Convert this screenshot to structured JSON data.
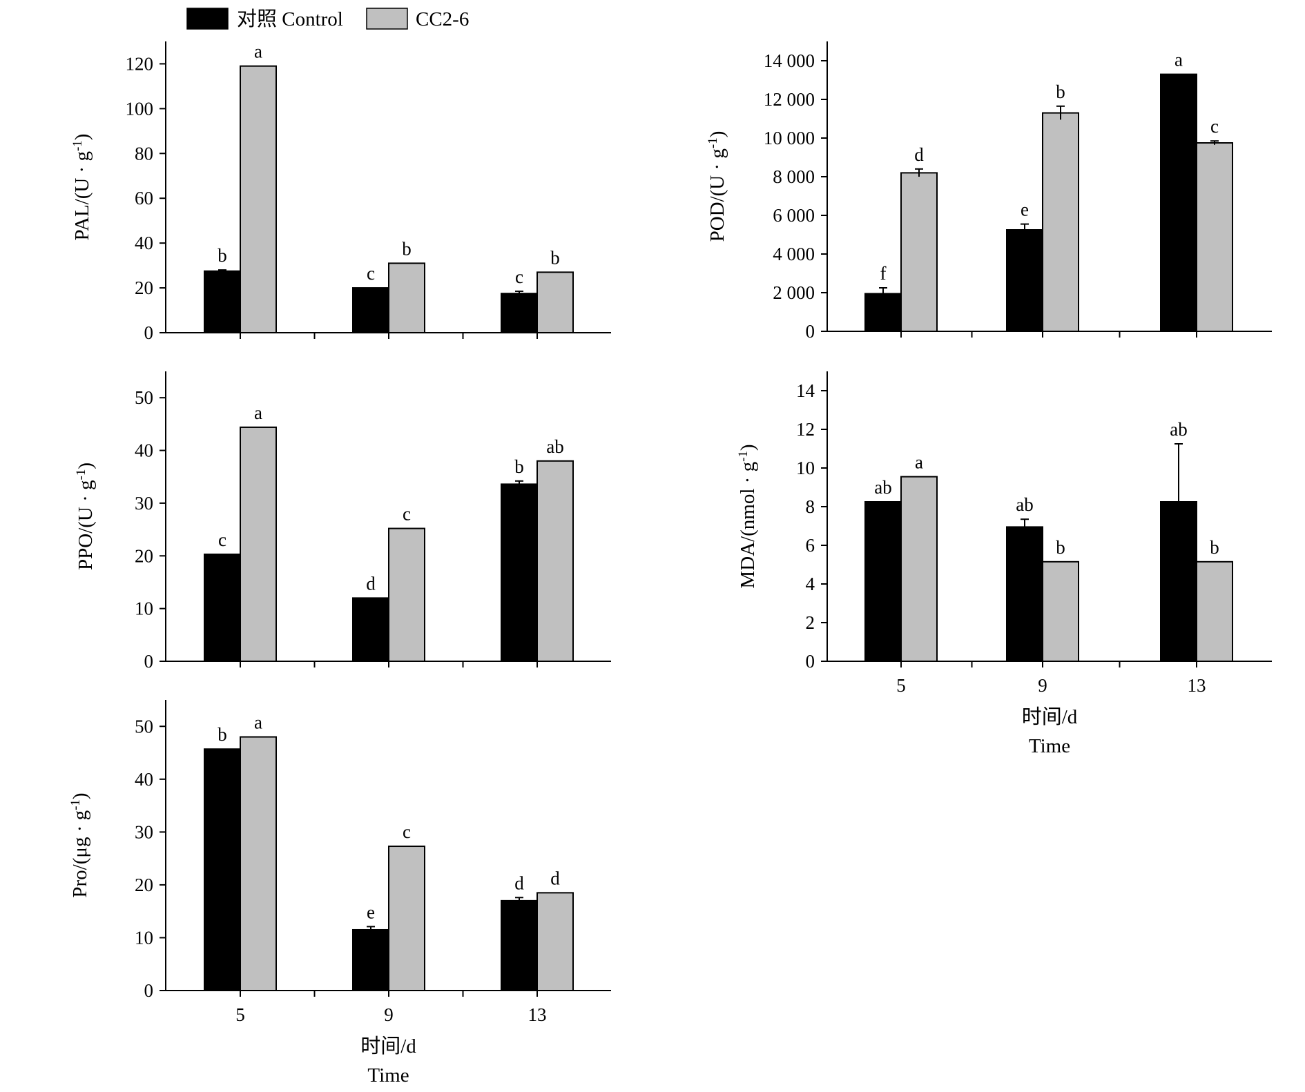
{
  "legend": {
    "items": [
      {
        "label": "对照 Control",
        "color": "#000000"
      },
      {
        "label": "CC2-6",
        "color": "#c0c0c0"
      }
    ]
  },
  "colors": {
    "control": "#000000",
    "treatment": "#c0c0c0",
    "axis": "#000000"
  },
  "chart_data": [
    {
      "id": "pal",
      "type": "bar",
      "ylabel": "PAL/(U · g-1)",
      "ylim": [
        0,
        130
      ],
      "yticks": [
        0,
        20,
        40,
        60,
        80,
        100,
        120
      ],
      "ytick_labels": [
        "0",
        "20",
        "40",
        "60",
        "80",
        "100",
        "120"
      ],
      "categories": [
        "5",
        "9",
        "13"
      ],
      "show_xticklabels": false,
      "series": [
        {
          "name": "对照 Control",
          "values": [
            27.5,
            20,
            17.5
          ],
          "errors": [
            0.5,
            0,
            1
          ],
          "letters": [
            "b",
            "c",
            "c"
          ]
        },
        {
          "name": "CC2-6",
          "values": [
            119,
            31,
            27
          ],
          "errors": [
            0,
            0,
            0
          ],
          "letters": [
            "a",
            "b",
            "b"
          ]
        }
      ]
    },
    {
      "id": "pod",
      "type": "bar",
      "ylabel": "POD/(U · g-1)",
      "ylim": [
        0,
        15000
      ],
      "yticks": [
        0,
        2000,
        4000,
        6000,
        8000,
        10000,
        12000,
        14000
      ],
      "ytick_labels": [
        "0",
        "2 000",
        "4 000",
        "6 000",
        "8 000",
        "10 000",
        "12 000",
        "14 000"
      ],
      "categories": [
        "5",
        "9",
        "13"
      ],
      "show_xticklabels": false,
      "series": [
        {
          "name": "对照 Control",
          "values": [
            1950,
            5250,
            13300
          ],
          "errors": [
            300,
            300,
            0
          ],
          "letters": [
            "f",
            "e",
            "a"
          ]
        },
        {
          "name": "CC2-6",
          "values": [
            8200,
            11300,
            9750
          ],
          "errors": [
            200,
            350,
            100
          ],
          "letters": [
            "d",
            "b",
            "c"
          ]
        }
      ]
    },
    {
      "id": "ppo",
      "type": "bar",
      "ylabel": "PPO/(U · g-1)",
      "ylim": [
        0,
        55
      ],
      "yticks": [
        0,
        10,
        20,
        30,
        40,
        50
      ],
      "ytick_labels": [
        "0",
        "10",
        "20",
        "30",
        "40",
        "50"
      ],
      "categories": [
        "5",
        "9",
        "13"
      ],
      "show_xticklabels": false,
      "series": [
        {
          "name": "对照 Control",
          "values": [
            20.3,
            12,
            33.6
          ],
          "errors": [
            0,
            0,
            0.6
          ],
          "letters": [
            "c",
            "d",
            "b"
          ]
        },
        {
          "name": "CC2-6",
          "values": [
            44.4,
            25.2,
            38
          ],
          "errors": [
            0,
            0,
            0
          ],
          "letters": [
            "a",
            "c",
            "ab"
          ]
        }
      ]
    },
    {
      "id": "mda",
      "type": "bar",
      "ylabel": "MDA/(nmol · g-1)",
      "ylim": [
        0,
        15
      ],
      "yticks": [
        0,
        2,
        4,
        6,
        8,
        10,
        12,
        14
      ],
      "ytick_labels": [
        "0",
        "2",
        "4",
        "6",
        "8",
        "10",
        "12",
        "14"
      ],
      "categories": [
        "5",
        "9",
        "13"
      ],
      "show_xticklabels": true,
      "xlabel": "时间/d",
      "xlabel2": "Time",
      "series": [
        {
          "name": "对照 Control",
          "values": [
            8.25,
            6.95,
            8.25
          ],
          "errors": [
            0,
            0.4,
            3
          ],
          "letters": [
            "ab",
            "ab",
            "ab"
          ]
        },
        {
          "name": "CC2-6",
          "values": [
            9.55,
            5.15,
            5.15
          ],
          "errors": [
            0,
            0,
            0
          ],
          "letters": [
            "a",
            "b",
            "b"
          ]
        }
      ]
    },
    {
      "id": "pro",
      "type": "bar",
      "ylabel": "Pro/(μg · g-1)",
      "ylim": [
        0,
        55
      ],
      "yticks": [
        0,
        10,
        20,
        30,
        40,
        50
      ],
      "ytick_labels": [
        "0",
        "10",
        "20",
        "30",
        "40",
        "50"
      ],
      "categories": [
        "5",
        "9",
        "13"
      ],
      "show_xticklabels": true,
      "xlabel": "时间/d",
      "xlabel2": "Time",
      "series": [
        {
          "name": "对照 Control",
          "values": [
            45.7,
            11.5,
            17
          ],
          "errors": [
            0,
            0.6,
            0.6
          ],
          "letters": [
            "b",
            "e",
            "d"
          ]
        },
        {
          "name": "CC2-6",
          "values": [
            48,
            27.3,
            18.5
          ],
          "errors": [
            0,
            0,
            0
          ],
          "letters": [
            "a",
            "c",
            "d"
          ]
        }
      ]
    }
  ]
}
